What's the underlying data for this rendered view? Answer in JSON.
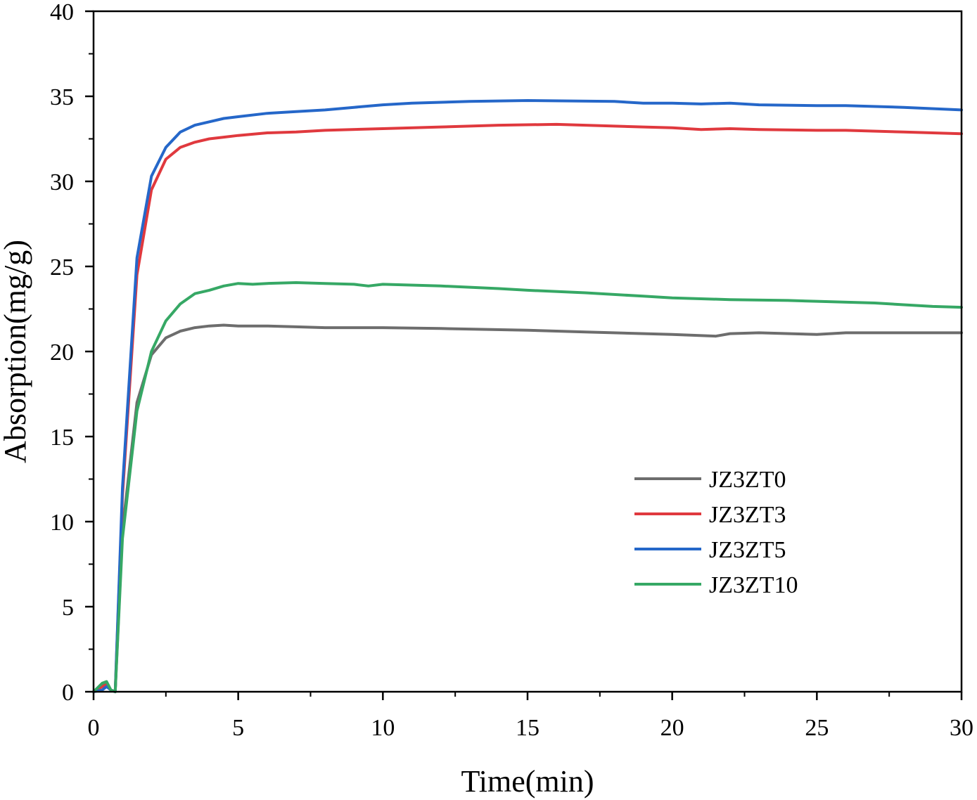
{
  "chart_data": {
    "type": "line",
    "title": "",
    "xlabel": "Time(min)",
    "ylabel": "Absorption(mg/g)",
    "xlim": [
      0,
      30
    ],
    "ylim": [
      0,
      40
    ],
    "x_ticks": [
      0,
      5,
      10,
      15,
      20,
      25,
      30
    ],
    "y_ticks": [
      0,
      5,
      10,
      15,
      20,
      25,
      30,
      35,
      40
    ],
    "x_tick_labels": [
      "0",
      "5",
      "10",
      "15",
      "20",
      "25",
      "30"
    ],
    "y_tick_labels": [
      "0",
      "5",
      "10",
      "15",
      "20",
      "25",
      "30",
      "35",
      "40"
    ],
    "grid": false,
    "legend_position": "center-right",
    "series": [
      {
        "name": "JZ3ZT0",
        "color": "#6d6d6d",
        "x": [
          0,
          0.3,
          0.45,
          0.6,
          0.75,
          1.0,
          1.5,
          2.0,
          2.5,
          3.0,
          3.5,
          4.0,
          4.5,
          5.0,
          6.0,
          7.0,
          8.0,
          10.0,
          12.0,
          15.0,
          17.0,
          20.0,
          21.5,
          22.0,
          23.0,
          25.0,
          26.0,
          28.0,
          30.0
        ],
        "y": [
          0,
          0.4,
          0.5,
          0.1,
          0.0,
          9.5,
          17.0,
          19.8,
          20.8,
          21.2,
          21.4,
          21.5,
          21.55,
          21.5,
          21.5,
          21.45,
          21.4,
          21.4,
          21.35,
          21.25,
          21.15,
          21.0,
          20.9,
          21.05,
          21.1,
          21.0,
          21.1,
          21.1,
          21.1
        ]
      },
      {
        "name": "JZ3ZT3",
        "color": "#e0393e",
        "x": [
          0,
          0.3,
          0.45,
          0.6,
          0.75,
          1.0,
          1.5,
          2.0,
          2.5,
          3.0,
          3.5,
          4.0,
          4.5,
          5.0,
          6.0,
          7.0,
          8.0,
          10.0,
          12.0,
          14.0,
          16.0,
          17.0,
          19.0,
          20.0,
          21.0,
          22.0,
          23.0,
          25.0,
          26.0,
          28.0,
          30.0
        ],
        "y": [
          0,
          0.3,
          0.4,
          0.1,
          0.0,
          11.5,
          24.5,
          29.5,
          31.3,
          32.0,
          32.3,
          32.5,
          32.6,
          32.7,
          32.85,
          32.9,
          33.0,
          33.1,
          33.2,
          33.3,
          33.35,
          33.3,
          33.2,
          33.15,
          33.05,
          33.1,
          33.05,
          33.0,
          33.0,
          32.9,
          32.8
        ]
      },
      {
        "name": "JZ3ZT5",
        "color": "#2567c9",
        "x": [
          0,
          0.3,
          0.45,
          0.6,
          0.75,
          1.0,
          1.5,
          2.0,
          2.5,
          3.0,
          3.5,
          4.0,
          4.5,
          5.0,
          6.0,
          7.0,
          8.0,
          9.0,
          10.0,
          11.0,
          13.0,
          15.0,
          18.0,
          19.0,
          20.0,
          21.0,
          22.0,
          23.0,
          25.0,
          26.0,
          28.0,
          30.0
        ],
        "y": [
          0,
          0.1,
          0.3,
          0.1,
          0.0,
          12.0,
          25.5,
          30.3,
          32.0,
          32.9,
          33.3,
          33.5,
          33.7,
          33.8,
          34.0,
          34.1,
          34.2,
          34.35,
          34.5,
          34.6,
          34.7,
          34.75,
          34.7,
          34.6,
          34.6,
          34.55,
          34.6,
          34.5,
          34.45,
          34.45,
          34.35,
          34.2
        ]
      },
      {
        "name": "JZ3ZT10",
        "color": "#36a865",
        "x": [
          0,
          0.3,
          0.45,
          0.6,
          0.75,
          1.0,
          1.5,
          2.0,
          2.5,
          3.0,
          3.5,
          4.0,
          4.5,
          5.0,
          5.5,
          6.0,
          7.0,
          8.0,
          9.0,
          9.5,
          10.0,
          12.0,
          14.0,
          15.0,
          17.0,
          19.0,
          20.0,
          22.0,
          24.0,
          25.0,
          27.0,
          28.0,
          29.0,
          30.0
        ],
        "y": [
          0,
          0.5,
          0.6,
          0.1,
          0.0,
          9.0,
          16.5,
          20.0,
          21.8,
          22.8,
          23.4,
          23.6,
          23.85,
          24.0,
          23.95,
          24.0,
          24.05,
          24.0,
          23.95,
          23.85,
          23.95,
          23.85,
          23.7,
          23.6,
          23.45,
          23.25,
          23.15,
          23.05,
          23.0,
          22.95,
          22.85,
          22.75,
          22.65,
          22.6
        ]
      }
    ]
  }
}
